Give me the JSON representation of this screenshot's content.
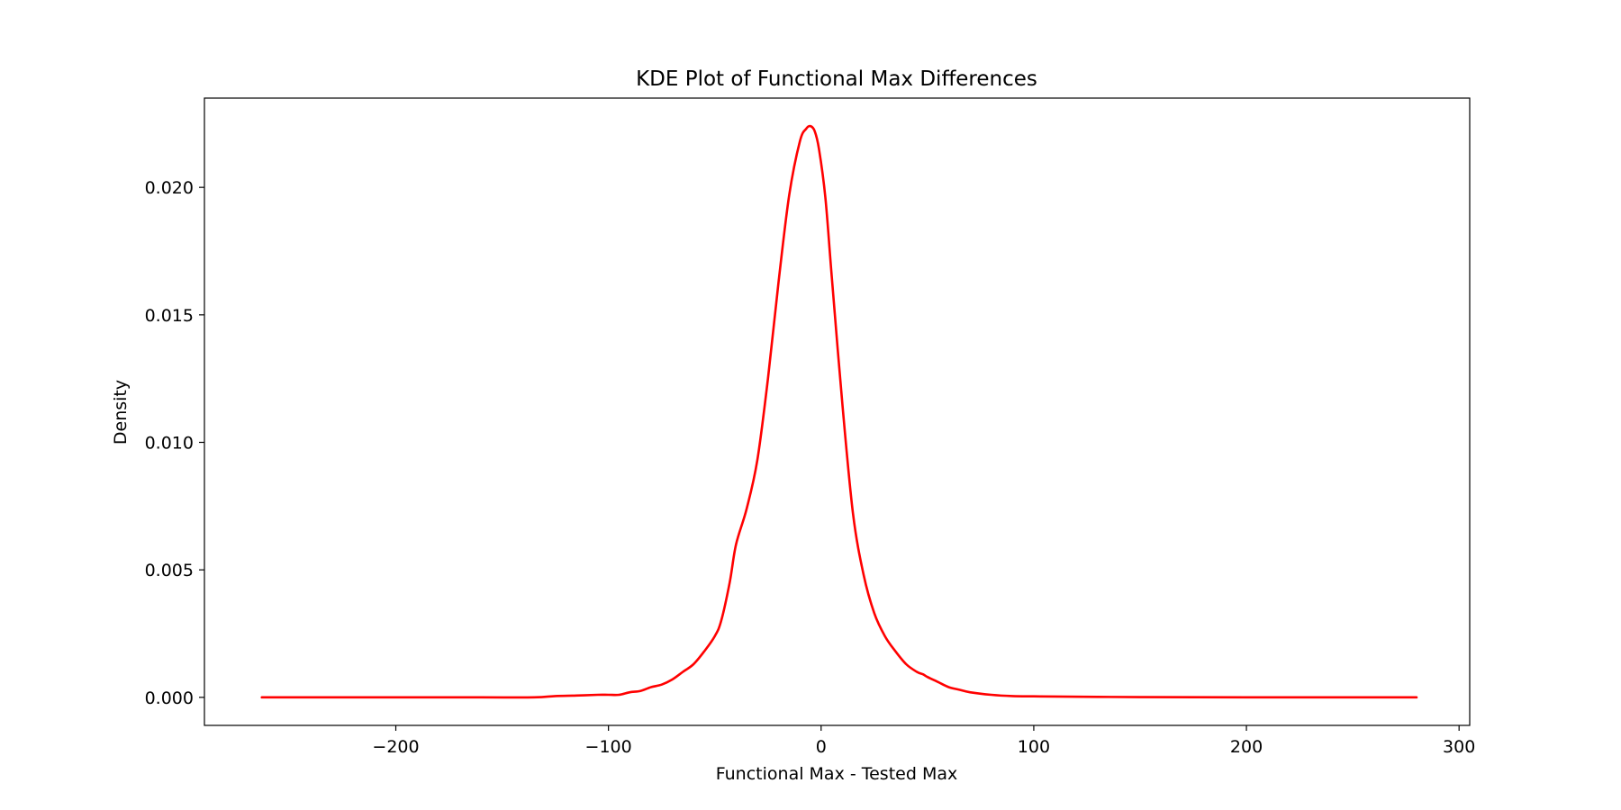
{
  "chart_data": {
    "type": "line",
    "title": "KDE Plot of Functional Max Differences",
    "xlabel": "Functional Max - Tested Max",
    "ylabel": "Density",
    "xlim": [
      -290,
      305
    ],
    "ylim": [
      -0.0011,
      0.0235
    ],
    "xticks": [
      -200,
      -100,
      0,
      100,
      200,
      300
    ],
    "xtick_labels": [
      "−200",
      "−100",
      "0",
      "100",
      "200",
      "300"
    ],
    "yticks": [
      0.0,
      0.005,
      0.01,
      0.015,
      0.02
    ],
    "ytick_labels": [
      "0.000",
      "0.005",
      "0.010",
      "0.015",
      "0.020"
    ],
    "grid": false,
    "legend": "none",
    "colors": {
      "line": "#ff0000",
      "axes": "#000000"
    },
    "series": [
      {
        "x": [
          -263,
          -240,
          -200,
          -160,
          -135,
          -125,
          -115,
          -105,
          -100,
          -95,
          -90,
          -85,
          -80,
          -75,
          -70,
          -65,
          -60,
          -55,
          -50,
          -47,
          -43,
          -40,
          -35,
          -30,
          -25,
          -20,
          -15,
          -10,
          -7,
          -5,
          -3,
          -1,
          2,
          5,
          10,
          15,
          20,
          25,
          30,
          35,
          40,
          45,
          48,
          50,
          55,
          60,
          65,
          70,
          80,
          90,
          100,
          110,
          130,
          150,
          200,
          280
        ],
        "y": [
          0.0,
          0.0,
          0.0,
          0.0,
          0.0,
          5e-05,
          7e-05,
          0.0001,
          0.0001,
          0.0001,
          0.0002,
          0.00025,
          0.0004,
          0.0005,
          0.0007,
          0.001,
          0.0013,
          0.0018,
          0.0024,
          0.003,
          0.0045,
          0.006,
          0.0074,
          0.0093,
          0.0125,
          0.0163,
          0.0197,
          0.0218,
          0.0223,
          0.0224,
          0.0222,
          0.0215,
          0.0196,
          0.0165,
          0.0115,
          0.0072,
          0.0048,
          0.0033,
          0.0024,
          0.0018,
          0.0013,
          0.001,
          0.0009,
          0.0008,
          0.0006,
          0.0004,
          0.0003,
          0.0002,
          0.0001,
          5e-05,
          4e-05,
          3e-05,
          2e-05,
          1e-05,
          0.0,
          0.0
        ]
      }
    ]
  }
}
